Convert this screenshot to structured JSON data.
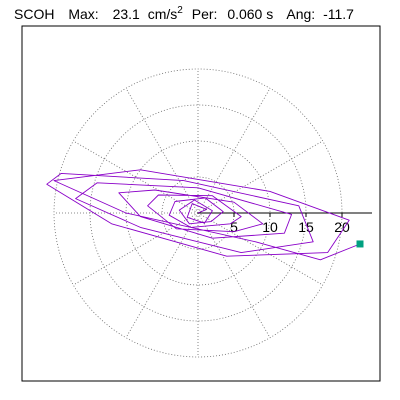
{
  "chart_data": {
    "type": "orbit",
    "header": {
      "station": "SCOH",
      "max_label": "Max:",
      "max_value": "23.1",
      "max_unit": "cm/s",
      "max_unit_sup": "2",
      "per_label": "Per:",
      "per_value": "0.060 s",
      "ang_label": "Ang:",
      "ang_value": "-11.7"
    },
    "rlim": [
      0,
      20
    ],
    "rticks": [
      5,
      10,
      15,
      20
    ],
    "spokes_deg": [
      0,
      30,
      60,
      90,
      120,
      150,
      180,
      210,
      240,
      270,
      300,
      330
    ],
    "series": [
      {
        "color": "#8a00c8",
        "end_color": "#00a080",
        "x": [
          0,
          1.2,
          -0.8,
          -1.5,
          0.9,
          2.0,
          -0.5,
          -2.6,
          -1.2,
          1.8,
          3.5,
          1.0,
          -3.2,
          -4.0,
          -1.0,
          4.5,
          6.0,
          2.0,
          -5.5,
          -7.0,
          -3.0,
          5.0,
          9.0,
          5.0,
          -6.0,
          -11.0,
          -8.0,
          2.0,
          12.0,
          13.0,
          0.0,
          -14.0,
          -17.0,
          -8.0,
          6.0,
          16.0,
          14.0,
          -2.0,
          -19.0,
          -21.0,
          -12.0,
          4.0,
          18.0,
          21.0,
          10.0,
          -8.0,
          -20.0,
          -10.0,
          8.0,
          17.0,
          22.5
        ],
        "y": [
          0,
          0.5,
          1.3,
          -0.6,
          -1.4,
          0.3,
          1.8,
          0.4,
          -1.5,
          -1.2,
          0.2,
          2.1,
          1.6,
          -0.3,
          -2.0,
          -1.5,
          -0.5,
          2.4,
          2.5,
          1.0,
          -2.2,
          -2.6,
          -1.5,
          1.5,
          3.2,
          2.8,
          -0.5,
          -3.5,
          -2.8,
          -0.2,
          3.5,
          4.2,
          2.0,
          -2.0,
          -5.5,
          -4.0,
          1.0,
          4.5,
          5.5,
          4.0,
          -1.5,
          -6.0,
          -5.5,
          -1.0,
          3.0,
          6.0,
          4.5,
          0.0,
          -4.0,
          -6.5,
          -4.3
        ]
      }
    ]
  }
}
